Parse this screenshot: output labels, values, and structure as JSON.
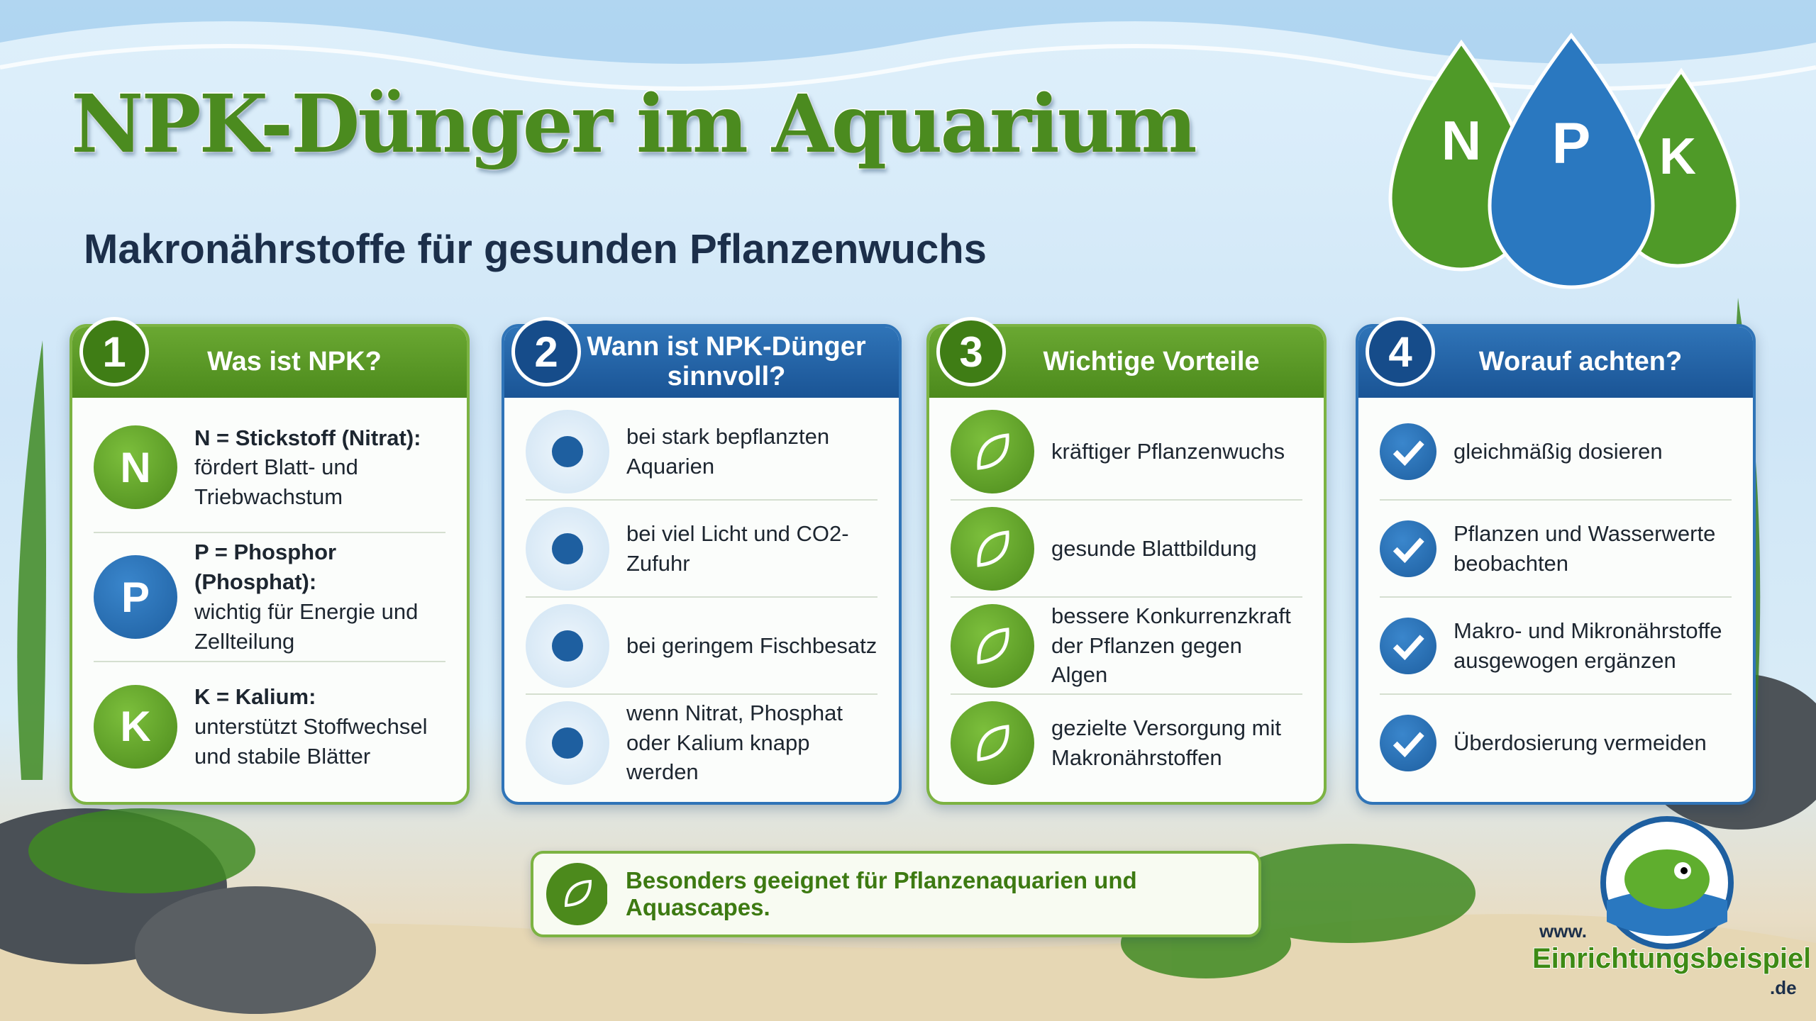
{
  "header": {
    "title": "NPK-Dünger im Aquarium",
    "subtitle": "Makronährstoffe für gesunden Pflanzenwuchs"
  },
  "drops": [
    "N",
    "P",
    "K"
  ],
  "cards": [
    {
      "number": "1",
      "title": "Was ist NPK?",
      "theme": "green",
      "items": [
        {
          "icon": "N",
          "label": "N = Stickstoff (Nitrat):",
          "text": "fördert Blatt- und Triebwachstum"
        },
        {
          "icon": "P",
          "label": "P = Phosphor (Phosphat):",
          "text": "wichtig für Energie und Zellteilung"
        },
        {
          "icon": "K",
          "label": "K = Kalium:",
          "text": "unterstützt Stoffwechsel und stabile Blätter"
        }
      ]
    },
    {
      "number": "2",
      "title": "Wann ist NPK-Dünger sinnvoll?",
      "theme": "blue",
      "items": [
        {
          "text": "bei stark bepflanzten Aquarien"
        },
        {
          "text": "bei viel Licht und CO2-Zufuhr"
        },
        {
          "text": "bei geringem Fischbesatz"
        },
        {
          "text": "wenn Nitrat, Phosphat oder Kalium knapp werden"
        }
      ]
    },
    {
      "number": "3",
      "title": "Wichtige Vorteile",
      "theme": "green",
      "items": [
        {
          "text": "kräftiger Pflanzenwuchs"
        },
        {
          "text": "gesunde Blattbildung"
        },
        {
          "text": "bessere Konkurrenzkraft der Pflanzen gegen Algen"
        },
        {
          "text": "gezielte Versorgung mit Makronährstoffen"
        }
      ]
    },
    {
      "number": "4",
      "title": "Worauf achten?",
      "theme": "blue",
      "items": [
        {
          "text": "gleichmäßig dosieren"
        },
        {
          "text": "Pflanzen und Wasserwerte beobachten"
        },
        {
          "text": "Makro- und Mikronährstoffe ausgewogen ergänzen"
        },
        {
          "text": "Überdosierung vermeiden"
        }
      ]
    }
  ],
  "banner": "Besonders geeignet für Pflanzenaquarien und Aquascapes.",
  "logo": {
    "prefix": "www.",
    "name": "Einrichtungsbeispiele",
    "suffix": ".de"
  }
}
